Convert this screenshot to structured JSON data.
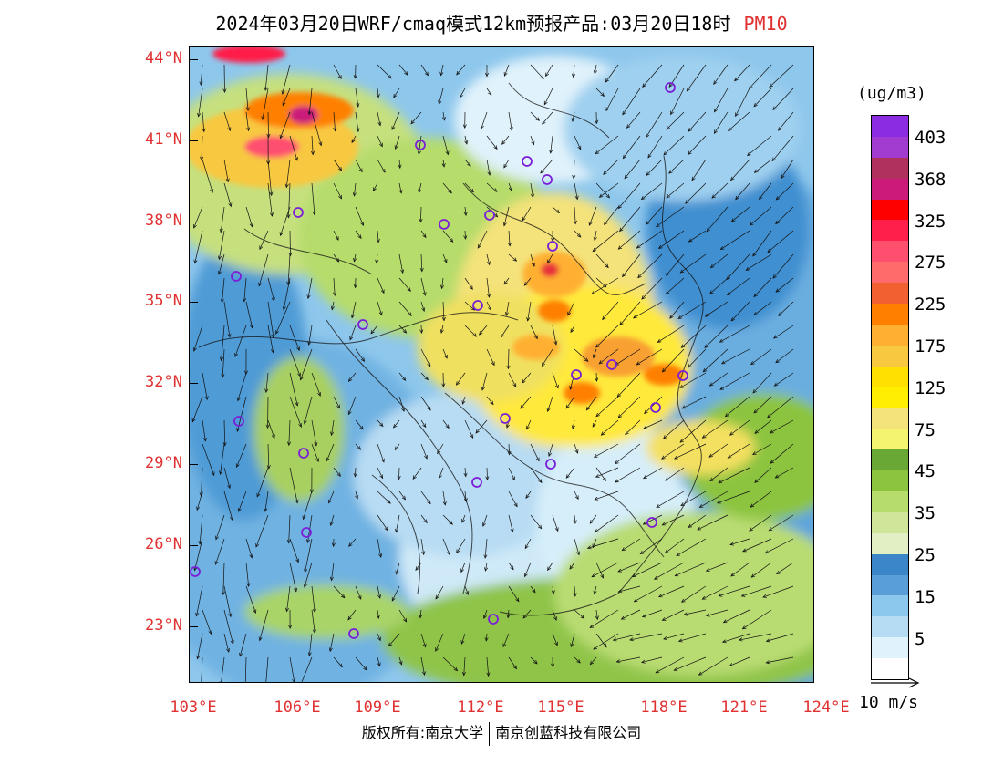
{
  "header": {
    "title": "2024年03月20日WRF/cmaq模式12km预报产品:03月20日18时",
    "pollutant": "PM10"
  },
  "axes": {
    "latitudes": [
      "44°N",
      "41°N",
      "38°N",
      "35°N",
      "32°N",
      "29°N",
      "26°N",
      "23°N"
    ],
    "longitudes": [
      "103°E",
      "106°E",
      "109°E",
      "112°E",
      "115°E",
      "118°E",
      "121°E",
      "124°E"
    ]
  },
  "legend": {
    "units": "(ug/m3)",
    "labels": [
      "403",
      "368",
      "325",
      "275",
      "225",
      "175",
      "125",
      "75",
      "45",
      "35",
      "25",
      "15",
      "5"
    ],
    "colors": [
      "#8b2be2",
      "#a23bd0",
      "#b0305e",
      "#cc1a7a",
      "#ff0000",
      "#ff1f4a",
      "#ff4f6f",
      "#ff6a6a",
      "#f06030",
      "#ff8000",
      "#ffb030",
      "#f8c840",
      "#ffe000",
      "#ffee00",
      "#f4e27a",
      "#f4f470",
      "#6aa836",
      "#8cc43f",
      "#b6dc6c",
      "#cfe59a",
      "#e2eec4",
      "#3a86c8",
      "#5a9ed8",
      "#8cc8ee",
      "#b6dcf4",
      "#e0f2fb",
      "#ffffff"
    ]
  },
  "vector_key": {
    "label": "10 m/s"
  },
  "footer": {
    "left": "版权所有:南京大学",
    "right": "南京创蓝科技有限公司"
  }
}
